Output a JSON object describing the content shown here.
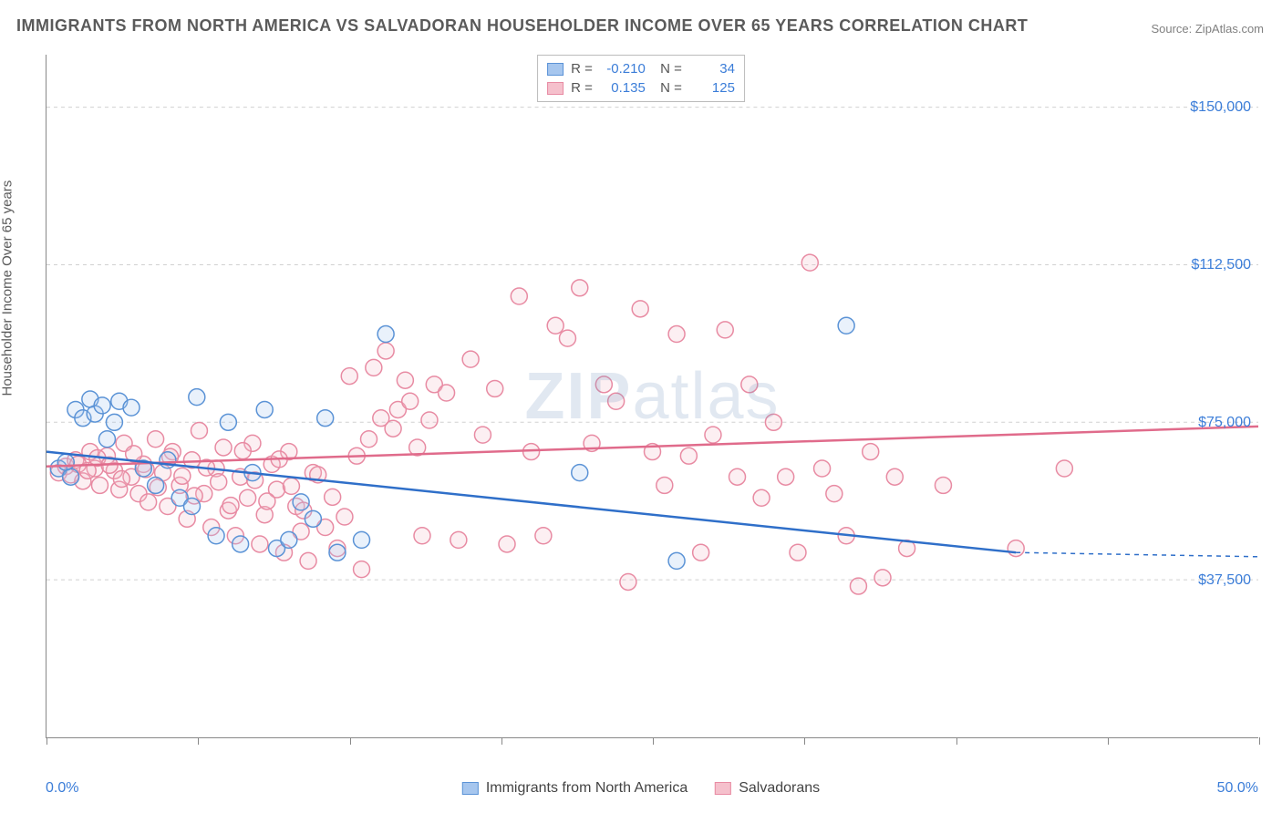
{
  "title": "IMMIGRANTS FROM NORTH AMERICA VS SALVADORAN HOUSEHOLDER INCOME OVER 65 YEARS CORRELATION CHART",
  "source": "Source: ZipAtlas.com",
  "y_axis_label": "Householder Income Over 65 years",
  "watermark": "ZIPatlas",
  "chart": {
    "type": "scatter",
    "xlim": [
      0,
      50
    ],
    "ylim": [
      0,
      162500
    ],
    "x_ticks_label_left": "0.0%",
    "x_ticks_label_right": "50.0%",
    "x_tick_positions_pct": [
      0,
      12.5,
      25,
      37.5,
      50,
      62.5,
      75,
      87.5,
      100
    ],
    "y_gridlines": [
      37500,
      75000,
      112500,
      150000
    ],
    "y_tick_labels": [
      "$37,500",
      "$75,000",
      "$112,500",
      "$150,000"
    ],
    "grid_color": "#d0d0d0",
    "background_color": "#ffffff",
    "axis_color": "#888888",
    "tick_label_color": "#3b7dd8",
    "label_fontsize": 15,
    "tick_fontsize": 16,
    "title_fontsize": 18,
    "marker_radius": 9,
    "marker_stroke_width": 1.5,
    "marker_fill_opacity": 0.25,
    "series": [
      {
        "name": "Immigrants from North America",
        "color_fill": "#a6c6ee",
        "color_stroke": "#5b93d6",
        "line_color": "#2f6fc9",
        "R": "-0.210",
        "N": "34",
        "regression": {
          "x1": 0,
          "y1": 68000,
          "x2": 40,
          "y2": 44000,
          "extrap_x2": 50,
          "extrap_y2": 43000
        },
        "points": [
          [
            0.5,
            64000
          ],
          [
            0.8,
            65500
          ],
          [
            1.0,
            62000
          ],
          [
            1.2,
            78000
          ],
          [
            1.5,
            76000
          ],
          [
            1.8,
            80500
          ],
          [
            2.0,
            77000
          ],
          [
            2.3,
            79000
          ],
          [
            2.5,
            71000
          ],
          [
            2.8,
            75000
          ],
          [
            3.0,
            80000
          ],
          [
            3.5,
            78500
          ],
          [
            4.0,
            64000
          ],
          [
            4.5,
            60000
          ],
          [
            5.0,
            66000
          ],
          [
            5.5,
            57000
          ],
          [
            6.0,
            55000
          ],
          [
            6.2,
            81000
          ],
          [
            7.0,
            48000
          ],
          [
            7.5,
            75000
          ],
          [
            8.0,
            46000
          ],
          [
            8.5,
            63000
          ],
          [
            9.0,
            78000
          ],
          [
            9.5,
            45000
          ],
          [
            10.0,
            47000
          ],
          [
            10.5,
            56000
          ],
          [
            11.0,
            52000
          ],
          [
            11.5,
            76000
          ],
          [
            12.0,
            44000
          ],
          [
            13.0,
            47000
          ],
          [
            14.0,
            96000
          ],
          [
            22.0,
            63000
          ],
          [
            26.0,
            42000
          ],
          [
            33.0,
            98000
          ]
        ]
      },
      {
        "name": "Salvadorans",
        "color_fill": "#f5c0cc",
        "color_stroke": "#e88ba3",
        "line_color": "#e06b8b",
        "R": "0.135",
        "N": "125",
        "regression": {
          "x1": 0,
          "y1": 64500,
          "x2": 50,
          "y2": 74000
        },
        "points": [
          [
            0.5,
            63000
          ],
          [
            0.8,
            64500
          ],
          [
            1.0,
            62500
          ],
          [
            1.2,
            66000
          ],
          [
            1.5,
            61000
          ],
          [
            1.8,
            68000
          ],
          [
            2.0,
            64000
          ],
          [
            2.2,
            60000
          ],
          [
            2.5,
            67000
          ],
          [
            2.8,
            63500
          ],
          [
            3.0,
            59000
          ],
          [
            3.2,
            70000
          ],
          [
            3.5,
            62000
          ],
          [
            3.8,
            58000
          ],
          [
            4.0,
            65000
          ],
          [
            4.2,
            56000
          ],
          [
            4.5,
            71000
          ],
          [
            4.8,
            63000
          ],
          [
            5.0,
            55000
          ],
          [
            5.2,
            68000
          ],
          [
            5.5,
            60000
          ],
          [
            5.8,
            52000
          ],
          [
            6.0,
            66000
          ],
          [
            6.3,
            73000
          ],
          [
            6.5,
            58000
          ],
          [
            6.8,
            50000
          ],
          [
            7.0,
            64000
          ],
          [
            7.3,
            69000
          ],
          [
            7.5,
            54000
          ],
          [
            7.8,
            48000
          ],
          [
            8.0,
            62000
          ],
          [
            8.3,
            57000
          ],
          [
            8.5,
            70000
          ],
          [
            8.8,
            46000
          ],
          [
            9.0,
            53000
          ],
          [
            9.3,
            65000
          ],
          [
            9.5,
            59000
          ],
          [
            9.8,
            44000
          ],
          [
            10.0,
            68000
          ],
          [
            10.3,
            55000
          ],
          [
            10.5,
            49000
          ],
          [
            10.8,
            42000
          ],
          [
            11.0,
            63000
          ],
          [
            11.5,
            50000
          ],
          [
            12.0,
            45000
          ],
          [
            12.5,
            86000
          ],
          [
            13.0,
            40000
          ],
          [
            13.5,
            88000
          ],
          [
            14.0,
            92000
          ],
          [
            14.5,
            78000
          ],
          [
            15.0,
            80000
          ],
          [
            15.5,
            48000
          ],
          [
            16.0,
            84000
          ],
          [
            16.5,
            82000
          ],
          [
            17.0,
            47000
          ],
          [
            17.5,
            90000
          ],
          [
            18.0,
            72000
          ],
          [
            18.5,
            83000
          ],
          [
            19.0,
            46000
          ],
          [
            19.5,
            105000
          ],
          [
            20.0,
            68000
          ],
          [
            20.5,
            48000
          ],
          [
            21.0,
            98000
          ],
          [
            21.5,
            95000
          ],
          [
            22.0,
            107000
          ],
          [
            22.5,
            70000
          ],
          [
            23.0,
            84000
          ],
          [
            23.5,
            80000
          ],
          [
            24.0,
            37000
          ],
          [
            24.5,
            102000
          ],
          [
            25.0,
            68000
          ],
          [
            25.5,
            60000
          ],
          [
            26.0,
            96000
          ],
          [
            26.5,
            67000
          ],
          [
            27.0,
            44000
          ],
          [
            27.5,
            72000
          ],
          [
            28.0,
            97000
          ],
          [
            28.5,
            62000
          ],
          [
            29.0,
            84000
          ],
          [
            29.5,
            57000
          ],
          [
            30.0,
            75000
          ],
          [
            30.5,
            62000
          ],
          [
            31.0,
            44000
          ],
          [
            31.5,
            113000
          ],
          [
            32.0,
            64000
          ],
          [
            32.5,
            58000
          ],
          [
            33.0,
            48000
          ],
          [
            33.5,
            36000
          ],
          [
            34.0,
            68000
          ],
          [
            34.5,
            38000
          ],
          [
            35.0,
            62000
          ],
          [
            35.5,
            45000
          ],
          [
            37.0,
            60000
          ],
          [
            40.0,
            45000
          ],
          [
            42.0,
            64000
          ],
          [
            1.3,
            65000
          ],
          [
            1.7,
            63500
          ],
          [
            2.1,
            66500
          ],
          [
            2.6,
            64800
          ],
          [
            3.1,
            61500
          ],
          [
            3.6,
            67500
          ],
          [
            4.1,
            63800
          ],
          [
            4.6,
            59500
          ],
          [
            5.1,
            66800
          ],
          [
            5.6,
            62200
          ],
          [
            6.1,
            57500
          ],
          [
            6.6,
            64200
          ],
          [
            7.1,
            60800
          ],
          [
            7.6,
            55200
          ],
          [
            8.1,
            68200
          ],
          [
            8.6,
            61200
          ],
          [
            9.1,
            56200
          ],
          [
            9.6,
            66200
          ],
          [
            10.1,
            59800
          ],
          [
            10.6,
            54000
          ],
          [
            11.2,
            62500
          ],
          [
            11.8,
            57200
          ],
          [
            12.3,
            52500
          ],
          [
            12.8,
            67000
          ],
          [
            13.3,
            71000
          ],
          [
            13.8,
            76000
          ],
          [
            14.3,
            73500
          ],
          [
            14.8,
            85000
          ],
          [
            15.3,
            69000
          ],
          [
            15.8,
            75500
          ]
        ]
      }
    ]
  },
  "legend_bottom": {
    "series1_label": "Immigrants from North America",
    "series2_label": "Salvadorans"
  }
}
